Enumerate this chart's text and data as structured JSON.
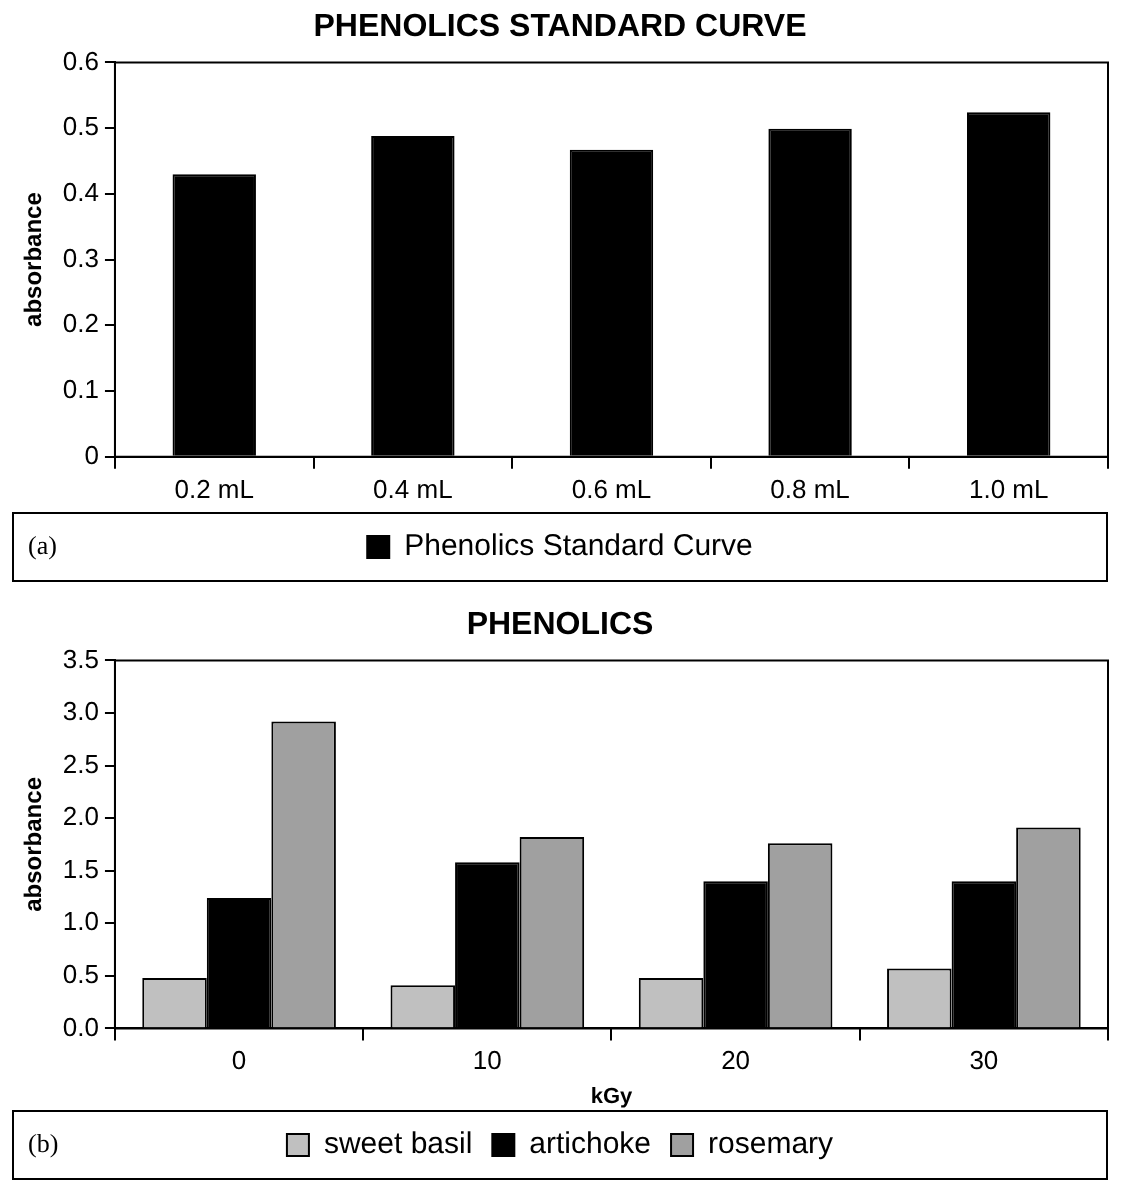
{
  "chart_data": [
    {
      "type": "bar",
      "title": "PHENOLICS STANDARD CURVE",
      "ylabel": "absorbance",
      "categories": [
        "0.2 mL",
        "0.4 mL",
        "0.6 mL",
        "0.8 mL",
        "1.0 mL"
      ],
      "series": [
        {
          "name": "Phenolics Standard Curve",
          "color": "#000000",
          "values": [
            0.43,
            0.488,
            0.467,
            0.499,
            0.524
          ]
        }
      ],
      "ylim": [
        0,
        0.6
      ],
      "yticks": [
        0,
        0.1,
        0.2,
        0.3,
        0.4,
        0.5,
        0.6
      ],
      "grid": false,
      "legend": "bottom",
      "annotations": [
        "(a)"
      ]
    },
    {
      "type": "bar",
      "title": "PHENOLICS",
      "xlabel": "kGy",
      "ylabel": "absorbance",
      "categories": [
        "0",
        "10",
        "20",
        "30"
      ],
      "series": [
        {
          "name": "sweet basil",
          "color": "#c0c0c0",
          "values": [
            0.48,
            0.41,
            0.48,
            0.57
          ]
        },
        {
          "name": "artichoke",
          "color": "#000000",
          "values": [
            1.24,
            1.58,
            1.4,
            1.4
          ]
        },
        {
          "name": "rosemary",
          "color": "#a0a0a0",
          "values": [
            2.92,
            1.82,
            1.76,
            1.91
          ]
        }
      ],
      "ylim": [
        0,
        3.5
      ],
      "yticks": [
        {
          "value": 0,
          "label": "0.0"
        },
        {
          "value": 0.5,
          "label": "0.5"
        },
        {
          "value": 1,
          "label": "1.0"
        },
        {
          "value": 1.5,
          "label": "1.5"
        },
        {
          "value": 2,
          "label": "2.0"
        },
        {
          "value": 2.5,
          "label": "2.5"
        },
        {
          "value": 3,
          "label": "3.0"
        },
        {
          "value": 3.5,
          "label": "3.5"
        }
      ],
      "grid": false,
      "legend": "bottom",
      "annotations": [
        "(b)"
      ]
    }
  ]
}
